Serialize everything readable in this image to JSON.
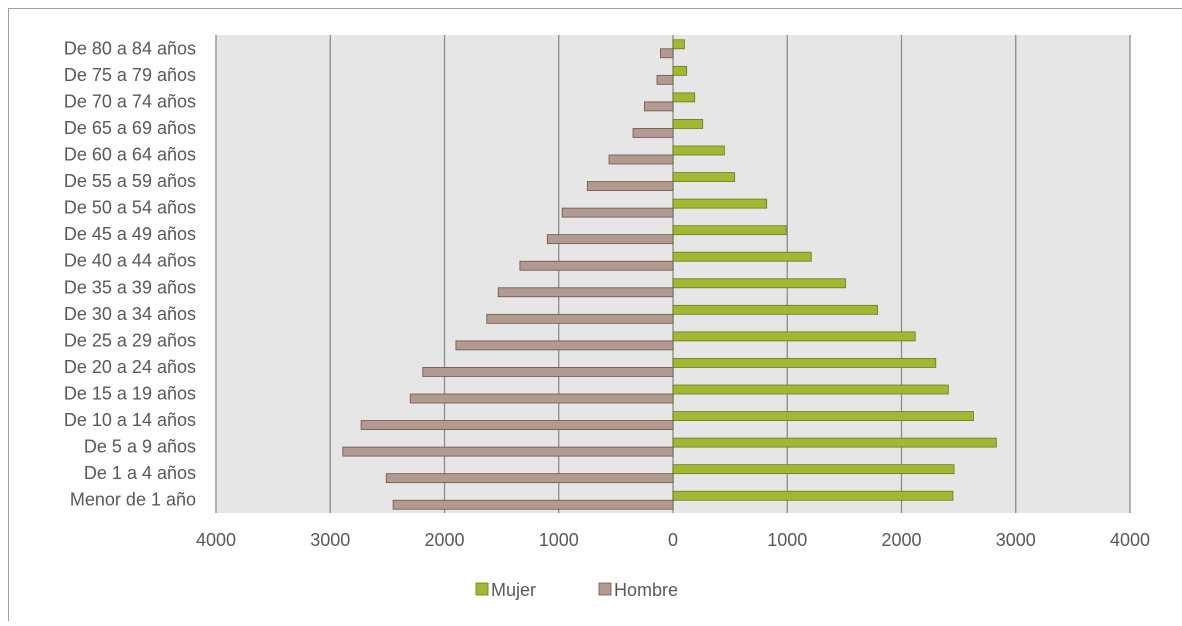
{
  "chart_data": {
    "type": "bar",
    "orientation": "horizontal",
    "title": "",
    "xlabel": "",
    "ylabel": "",
    "categories": [
      "Menor de 1 año",
      "De 1 a 4 años",
      "De 5 a 9 años",
      "De 10 a 14 años",
      "De 15 a 19 años",
      "De 20 a 24 años",
      "De 25 a 29 años",
      "De 30 a 34 años",
      "De 35 a 39 años",
      "De 40 a 44 años",
      "De 45 a 49 años",
      "De 50 a 54 años",
      "De 55 a 59 años",
      "De 60 a 64 años",
      "De 65 a 69 años",
      "De 70 a 74 años",
      "De 75 a 79 años",
      "De 80 a 84 años"
    ],
    "series": [
      {
        "name": "Mujer",
        "color": "#a3b832",
        "values": [
          2450,
          2460,
          2830,
          2630,
          2410,
          2300,
          2120,
          1790,
          1510,
          1210,
          990,
          820,
          540,
          450,
          260,
          190,
          120,
          100
        ]
      },
      {
        "name": "Hombre",
        "color": "#b39a91",
        "values": [
          2450,
          2510,
          2890,
          2730,
          2300,
          2190,
          1900,
          1630,
          1530,
          1340,
          1100,
          970,
          750,
          560,
          350,
          250,
          140,
          110
        ]
      }
    ],
    "xlim": [
      -4000,
      4000
    ],
    "tick_values": [
      -4000,
      -3000,
      -2000,
      -1000,
      0,
      1000,
      2000,
      3000,
      4000
    ],
    "tick_labels": [
      "4000",
      "3000",
      "2000",
      "1000",
      "0",
      "1000",
      "2000",
      "3000",
      "4000"
    ],
    "grid": true,
    "legend_position": "bottom",
    "legend": [
      "Mujer",
      "Hombre"
    ],
    "colors": {
      "plot_background": "#e6e6e6",
      "gridline": "#8c8c8c",
      "axis_text": "#595959"
    }
  }
}
